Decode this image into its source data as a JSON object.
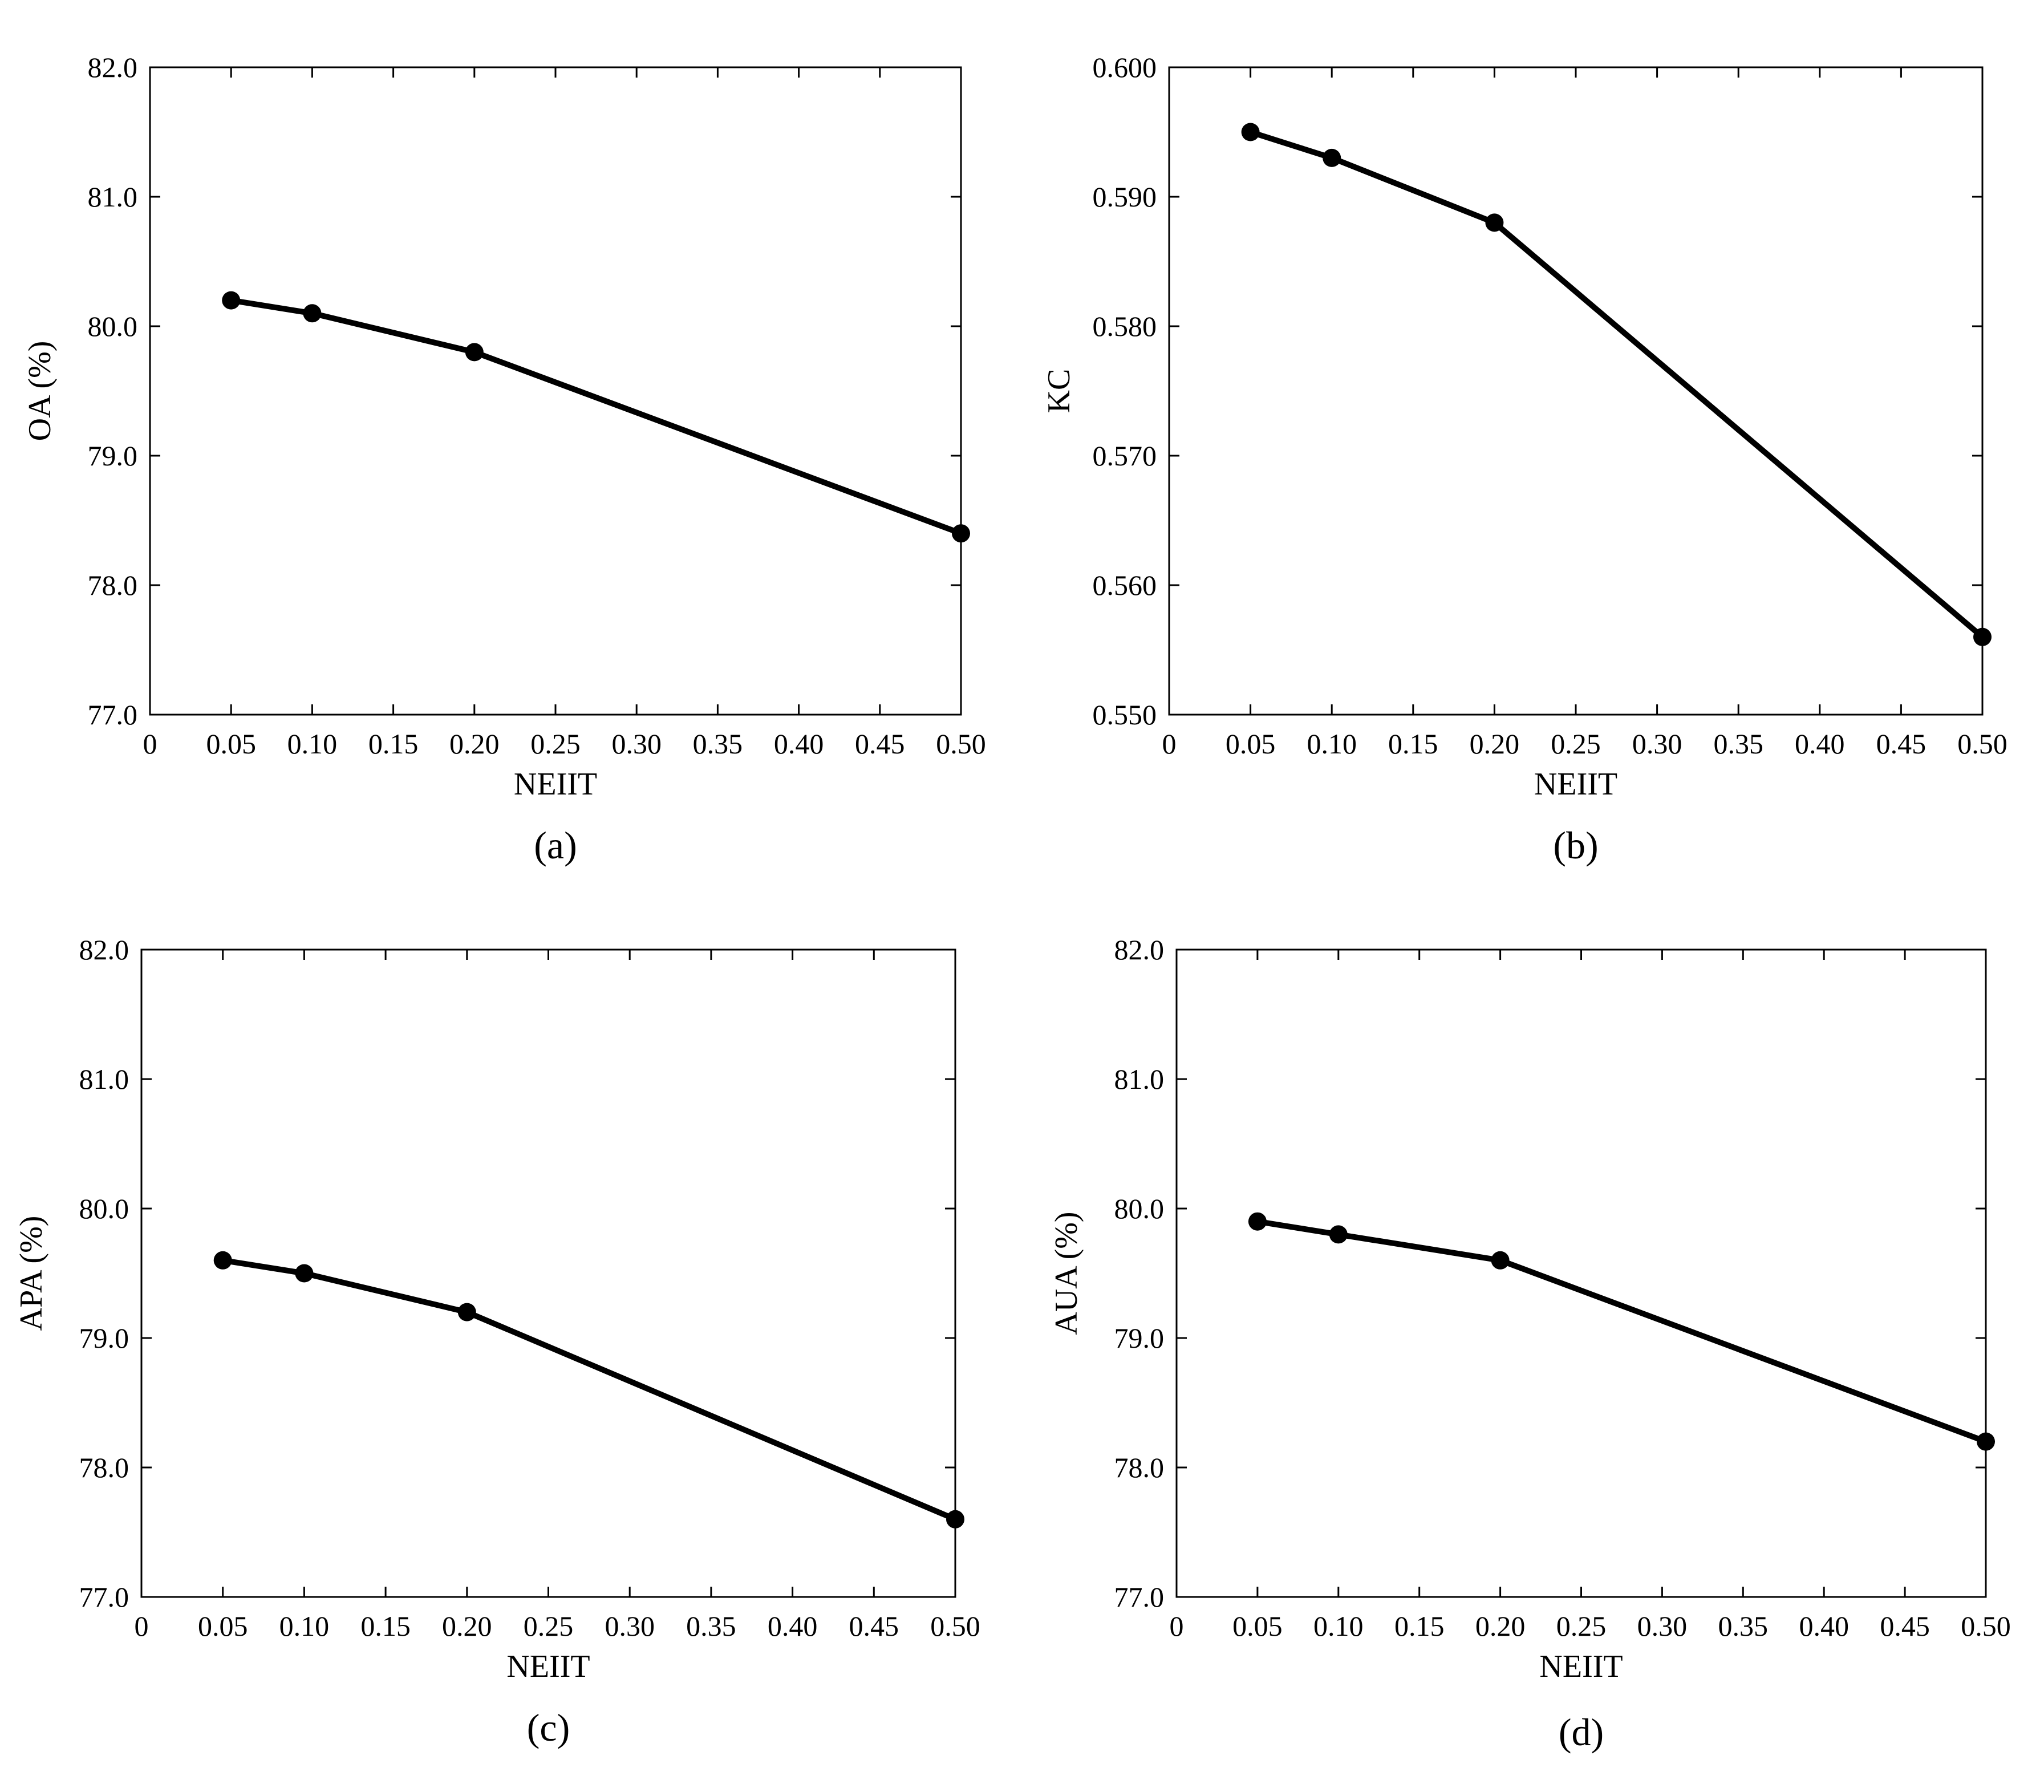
{
  "chart_data": [
    {
      "type": "line",
      "panel_label": "(a)",
      "xlabel": "NEIIT",
      "ylabel": "OA (%)",
      "xlim": [
        0,
        0.5
      ],
      "ylim": [
        77.0,
        82.0
      ],
      "x_ticks": [
        0,
        0.05,
        0.1,
        0.15,
        0.2,
        0.25,
        0.3,
        0.35,
        0.4,
        0.45,
        0.5
      ],
      "x_tick_labels": [
        "0",
        "0.05",
        "0.10",
        "0.15",
        "0.20",
        "0.25",
        "0.30",
        "0.35",
        "0.40",
        "0.45",
        "0.50"
      ],
      "y_ticks": [
        77.0,
        78.0,
        79.0,
        80.0,
        81.0,
        82.0
      ],
      "y_tick_labels": [
        "77.0",
        "78.0",
        "79.0",
        "80.0",
        "81.0",
        "82.0"
      ],
      "x": [
        0.05,
        0.1,
        0.2,
        0.5
      ],
      "y": [
        80.2,
        80.1,
        79.8,
        78.4
      ]
    },
    {
      "type": "line",
      "panel_label": "(b)",
      "xlabel": "NEIIT",
      "ylabel": "KC",
      "xlim": [
        0,
        0.5
      ],
      "ylim": [
        0.55,
        0.6
      ],
      "x_ticks": [
        0,
        0.05,
        0.1,
        0.15,
        0.2,
        0.25,
        0.3,
        0.35,
        0.4,
        0.45,
        0.5
      ],
      "x_tick_labels": [
        "0",
        "0.05",
        "0.10",
        "0.15",
        "0.20",
        "0.25",
        "0.30",
        "0.35",
        "0.40",
        "0.45",
        "0.50"
      ],
      "y_ticks": [
        0.55,
        0.56,
        0.57,
        0.58,
        0.59,
        0.6
      ],
      "y_tick_labels": [
        "0.550",
        "0.560",
        "0.570",
        "0.580",
        "0.590",
        "0.600"
      ],
      "x": [
        0.05,
        0.1,
        0.2,
        0.5
      ],
      "y": [
        0.595,
        0.593,
        0.588,
        0.556
      ]
    },
    {
      "type": "line",
      "panel_label": "(c)",
      "xlabel": "NEIIT",
      "ylabel": "APA (%)",
      "xlim": [
        0,
        0.5
      ],
      "ylim": [
        77.0,
        82.0
      ],
      "x_ticks": [
        0,
        0.05,
        0.1,
        0.15,
        0.2,
        0.25,
        0.3,
        0.35,
        0.4,
        0.45,
        0.5
      ],
      "x_tick_labels": [
        "0",
        "0.05",
        "0.10",
        "0.15",
        "0.20",
        "0.25",
        "0.30",
        "0.35",
        "0.40",
        "0.45",
        "0.50"
      ],
      "y_ticks": [
        77.0,
        78.0,
        79.0,
        80.0,
        81.0,
        82.0
      ],
      "y_tick_labels": [
        "77.0",
        "78.0",
        "79.0",
        "80.0",
        "81.0",
        "82.0"
      ],
      "x": [
        0.05,
        0.1,
        0.2,
        0.5
      ],
      "y": [
        79.6,
        79.5,
        79.2,
        77.6
      ]
    },
    {
      "type": "line",
      "panel_label": "(d)",
      "xlabel": "NEIIT",
      "ylabel": "AUA (%)",
      "xlim": [
        0,
        0.5
      ],
      "ylim": [
        77.0,
        82.0
      ],
      "x_ticks": [
        0,
        0.05,
        0.1,
        0.15,
        0.2,
        0.25,
        0.3,
        0.35,
        0.4,
        0.45,
        0.5
      ],
      "x_tick_labels": [
        "0",
        "0.05",
        "0.10",
        "0.15",
        "0.20",
        "0.25",
        "0.30",
        "0.35",
        "0.40",
        "0.45",
        "0.50"
      ],
      "y_ticks": [
        77.0,
        78.0,
        79.0,
        80.0,
        81.0,
        82.0
      ],
      "y_tick_labels": [
        "77.0",
        "78.0",
        "79.0",
        "80.0",
        "81.0",
        "82.0"
      ],
      "x": [
        0.05,
        0.1,
        0.2,
        0.5
      ],
      "y": [
        79.9,
        79.8,
        79.6,
        78.2
      ]
    }
  ]
}
